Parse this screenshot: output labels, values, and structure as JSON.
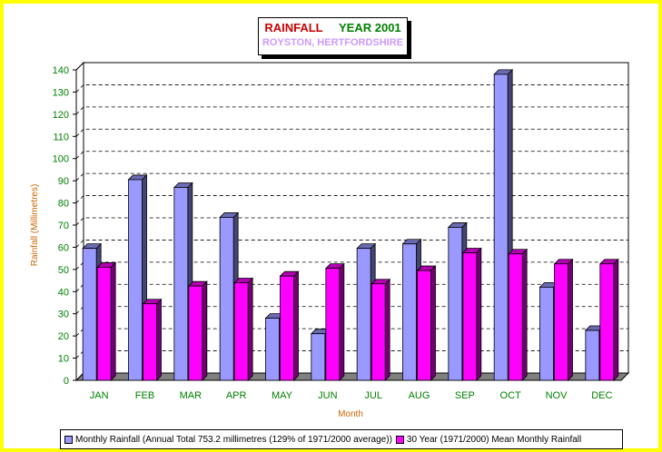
{
  "chart_data": {
    "type": "bar",
    "title": "RAINFALL",
    "title_year": "YEAR 2001",
    "subtitle": "ROYSTON, HERTFORDSHIRE",
    "xlabel": "Month",
    "ylabel": "Rainfall (Millimetres)",
    "ylim": [
      0,
      140
    ],
    "yticks": [
      0,
      10,
      20,
      30,
      40,
      50,
      60,
      70,
      80,
      90,
      100,
      110,
      120,
      130,
      140
    ],
    "grid": true,
    "legend_position": "bottom",
    "categories": [
      "JAN",
      "FEB",
      "MAR",
      "APR",
      "MAY",
      "JUN",
      "JUL",
      "AUG",
      "SEP",
      "OCT",
      "NOV",
      "DEC"
    ],
    "series": [
      {
        "name": "Monthly Rainfall (Annual Total 753.2 millimetres (129% of 1971/2000 average))",
        "color": "#9999ff",
        "values": [
          59.5,
          90.5,
          87,
          73.5,
          28,
          21,
          59.5,
          61.5,
          69,
          138,
          42,
          22.5
        ]
      },
      {
        "name": "30 Year (1971/2000) Mean Monthly Rainfall",
        "color": "#ff00ff",
        "values": [
          51,
          34.5,
          42.5,
          44,
          47,
          50.5,
          43.5,
          49.5,
          57.5,
          57,
          52.5,
          52.5
        ]
      }
    ]
  },
  "colors": {
    "frame": "#ffff00",
    "tick_text": "#008000",
    "axis_title": "#cc6600",
    "floor": "#808080"
  }
}
